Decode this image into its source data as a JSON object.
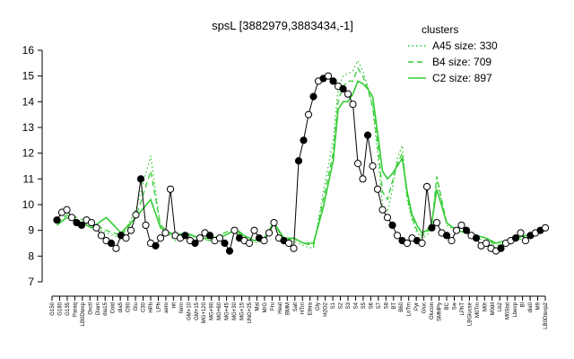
{
  "chart_data": {
    "type": "line",
    "title": "spsL [3882979,3883434,-1]",
    "ylim": [
      7,
      16
    ],
    "yticks": [
      7,
      8,
      9,
      10,
      11,
      12,
      13,
      14,
      15,
      16
    ],
    "xlim": [
      0,
      100
    ],
    "xtick_labels": [
      "G150",
      "G180",
      "G135",
      "Paraq",
      "LB0Dtexp",
      "Oxctl",
      "Diam",
      "dia15",
      "Cold",
      "dia5",
      "C90",
      "Glu",
      "C30",
      "HPh",
      "LPh",
      "aero",
      "nit",
      "ferm",
      "GM+10",
      "GM+15",
      "MG+120",
      "MG+90",
      "MG+60",
      "MG+45",
      "MG+30",
      "MG+15",
      "UNG+25",
      "Mal",
      "M/G",
      "Fru",
      "Heat",
      "BMM",
      "Salt",
      "HTm",
      "Ethra",
      "Gly",
      "H2O2",
      "S1",
      "S2",
      "S3",
      "S4",
      "S5",
      "S6",
      "S7",
      "S8",
      "BT",
      "B60",
      "LoTm",
      "Pyr",
      "Gluc",
      "Glucon",
      "SMMPy",
      "BC",
      "Sw",
      "LPhT",
      "LBGlucse",
      "M0Tm",
      "M0t",
      "M0dil",
      "Lb2",
      "M0Stat",
      "Lbexp",
      "Bl",
      "dia0",
      "M9",
      "LB0Dtexp2"
    ],
    "legend": {
      "heading": "clusters",
      "entries": [
        {
          "label": "A45 size: 330",
          "style": "dotted"
        },
        {
          "label": "B4 size: 709",
          "style": "dashed"
        },
        {
          "label": "C2 size: 897",
          "style": "solid"
        }
      ]
    },
    "series": [
      {
        "style": "dotted",
        "x": [
          1,
          3,
          5,
          8,
          11,
          14,
          17,
          20,
          22,
          25,
          27,
          30,
          32,
          35,
          37,
          39,
          41,
          43,
          45,
          47,
          49,
          51,
          53,
          55,
          57,
          58,
          59,
          60,
          61,
          62,
          63,
          64,
          65,
          66,
          67,
          68,
          69,
          70,
          71,
          72,
          73,
          74,
          75,
          76,
          77,
          78,
          80,
          82,
          84,
          86,
          88,
          90,
          92,
          94,
          96,
          98,
          100
        ],
        "y": [
          9.2,
          9.5,
          9.4,
          9.2,
          8.9,
          8.7,
          9.8,
          11.9,
          9.1,
          8.6,
          8.8,
          8.7,
          8.6,
          8.8,
          9.0,
          8.7,
          8.5,
          8.6,
          9.4,
          8.5,
          8.6,
          8.4,
          8.3,
          10.5,
          12.5,
          14.5,
          15.0,
          15.1,
          15.2,
          15.6,
          15.2,
          14.6,
          13.8,
          12.0,
          10.0,
          9.7,
          10.6,
          11.8,
          12.3,
          10.2,
          9.4,
          8.9,
          8.7,
          8.8,
          9.1,
          11.0,
          9.2,
          9.0,
          8.9,
          8.7,
          8.6,
          8.3,
          8.4,
          8.6,
          8.7,
          8.9,
          9.0
        ]
      },
      {
        "style": "dashed",
        "x": [
          1,
          3,
          5,
          8,
          11,
          14,
          17,
          20,
          22,
          25,
          27,
          30,
          32,
          35,
          37,
          39,
          41,
          43,
          45,
          47,
          49,
          51,
          53,
          55,
          57,
          58,
          59,
          60,
          61,
          62,
          63,
          64,
          65,
          66,
          67,
          68,
          69,
          70,
          71,
          72,
          73,
          74,
          75,
          76,
          77,
          78,
          80,
          82,
          84,
          86,
          88,
          90,
          92,
          94,
          96,
          98,
          100
        ],
        "y": [
          9.3,
          9.6,
          9.5,
          9.3,
          9.0,
          8.8,
          9.5,
          11.3,
          9.2,
          8.7,
          8.9,
          8.7,
          8.6,
          8.9,
          9.1,
          8.8,
          8.6,
          8.7,
          9.3,
          8.6,
          8.7,
          8.5,
          8.4,
          10.2,
          12.0,
          14.0,
          14.6,
          14.8,
          14.8,
          15.3,
          15.0,
          14.5,
          13.8,
          12.4,
          10.5,
          10.2,
          10.9,
          11.6,
          12.0,
          10.3,
          9.5,
          9.0,
          8.8,
          8.9,
          9.2,
          11.1,
          9.3,
          9.0,
          8.9,
          8.8,
          8.7,
          8.4,
          8.5,
          8.6,
          8.8,
          8.9,
          9.0
        ]
      },
      {
        "style": "solid",
        "x": [
          1,
          3,
          5,
          8,
          11,
          14,
          17,
          20,
          22,
          25,
          27,
          30,
          32,
          35,
          37,
          39,
          41,
          43,
          45,
          47,
          49,
          51,
          53,
          55,
          57,
          58,
          59,
          60,
          61,
          62,
          63,
          64,
          65,
          66,
          67,
          68,
          69,
          70,
          71,
          72,
          73,
          74,
          75,
          76,
          77,
          78,
          80,
          82,
          84,
          86,
          88,
          90,
          92,
          94,
          96,
          98,
          100
        ],
        "y": [
          9.2,
          9.5,
          9.4,
          9.1,
          9.5,
          8.9,
          9.5,
          10.2,
          9.1,
          8.8,
          8.9,
          8.7,
          8.7,
          8.8,
          9.0,
          8.8,
          8.6,
          8.7,
          9.3,
          8.7,
          8.7,
          8.5,
          8.5,
          9.9,
          11.7,
          13.7,
          14.0,
          14.0,
          14.3,
          14.8,
          14.7,
          14.5,
          14.2,
          12.8,
          11.3,
          11.0,
          11.2,
          11.5,
          11.8,
          10.5,
          9.6,
          9.2,
          8.9,
          9.0,
          9.3,
          10.6,
          9.3,
          9.0,
          8.9,
          8.8,
          8.7,
          8.5,
          8.6,
          8.7,
          8.8,
          8.9,
          9.0
        ]
      }
    ],
    "points": {
      "x": [
        1,
        2,
        3,
        4,
        5,
        6,
        7,
        8,
        9,
        10,
        11,
        12,
        13,
        14,
        15,
        16,
        17,
        18,
        19,
        20,
        21,
        22,
        23,
        24,
        25,
        26,
        27,
        28,
        29,
        30,
        31,
        32,
        33,
        34,
        35,
        36,
        37,
        38,
        39,
        40,
        41,
        42,
        43,
        44,
        45,
        46,
        47,
        48,
        49,
        50,
        51,
        52,
        53,
        54,
        55,
        56,
        57,
        58,
        59,
        60,
        61,
        62,
        63,
        64,
        65,
        66,
        67,
        68,
        69,
        70,
        71,
        72,
        73,
        74,
        75,
        76,
        77,
        78,
        79,
        80,
        81,
        82,
        83,
        84,
        85,
        86,
        87,
        88,
        89,
        90,
        91,
        92,
        93,
        94,
        95,
        96,
        97,
        98,
        99,
        100
      ],
      "y": [
        9.4,
        9.7,
        9.8,
        9.5,
        9.3,
        9.2,
        9.4,
        9.3,
        9.1,
        8.8,
        8.6,
        8.5,
        8.3,
        8.8,
        8.7,
        9.0,
        9.6,
        11.0,
        9.2,
        8.5,
        8.4,
        8.7,
        8.9,
        10.6,
        8.8,
        8.7,
        8.8,
        8.6,
        8.5,
        8.7,
        8.9,
        8.8,
        8.6,
        8.7,
        8.5,
        8.2,
        9.0,
        8.7,
        8.6,
        8.5,
        9.0,
        8.7,
        8.6,
        8.9,
        9.3,
        8.7,
        8.6,
        8.5,
        8.3,
        11.7,
        12.5,
        13.5,
        14.2,
        14.8,
        14.9,
        15.0,
        14.8,
        14.6,
        14.5,
        14.3,
        13.9,
        11.6,
        11.0,
        12.7,
        11.5,
        10.6,
        9.8,
        9.5,
        9.2,
        8.8,
        8.6,
        8.5,
        8.7,
        8.6,
        8.5,
        10.7,
        9.1,
        9.3,
        8.9,
        8.8,
        8.6,
        9.0,
        9.2,
        9.0,
        8.8,
        8.7,
        8.4,
        8.5,
        8.3,
        8.2,
        8.3,
        8.5,
        8.6,
        8.7,
        8.9,
        8.6,
        8.8,
        8.9,
        9.0,
        9.1
      ],
      "filled": [
        true,
        false,
        false,
        false,
        true,
        true,
        false,
        false,
        false,
        false,
        false,
        true,
        false,
        true,
        false,
        false,
        false,
        true,
        false,
        false,
        true,
        false,
        false,
        false,
        false,
        false,
        true,
        false,
        true,
        false,
        false,
        true,
        false,
        false,
        true,
        true,
        false,
        true,
        false,
        false,
        false,
        true,
        false,
        false,
        false,
        false,
        true,
        false,
        false,
        true,
        true,
        false,
        true,
        false,
        true,
        false,
        true,
        false,
        true,
        false,
        false,
        false,
        false,
        true,
        false,
        false,
        false,
        false,
        true,
        false,
        true,
        false,
        false,
        true,
        false,
        false,
        true,
        false,
        false,
        true,
        false,
        false,
        false,
        true,
        false,
        true,
        false,
        false,
        false,
        false,
        true,
        false,
        false,
        true,
        false,
        false,
        true,
        false,
        true,
        false
      ]
    }
  }
}
